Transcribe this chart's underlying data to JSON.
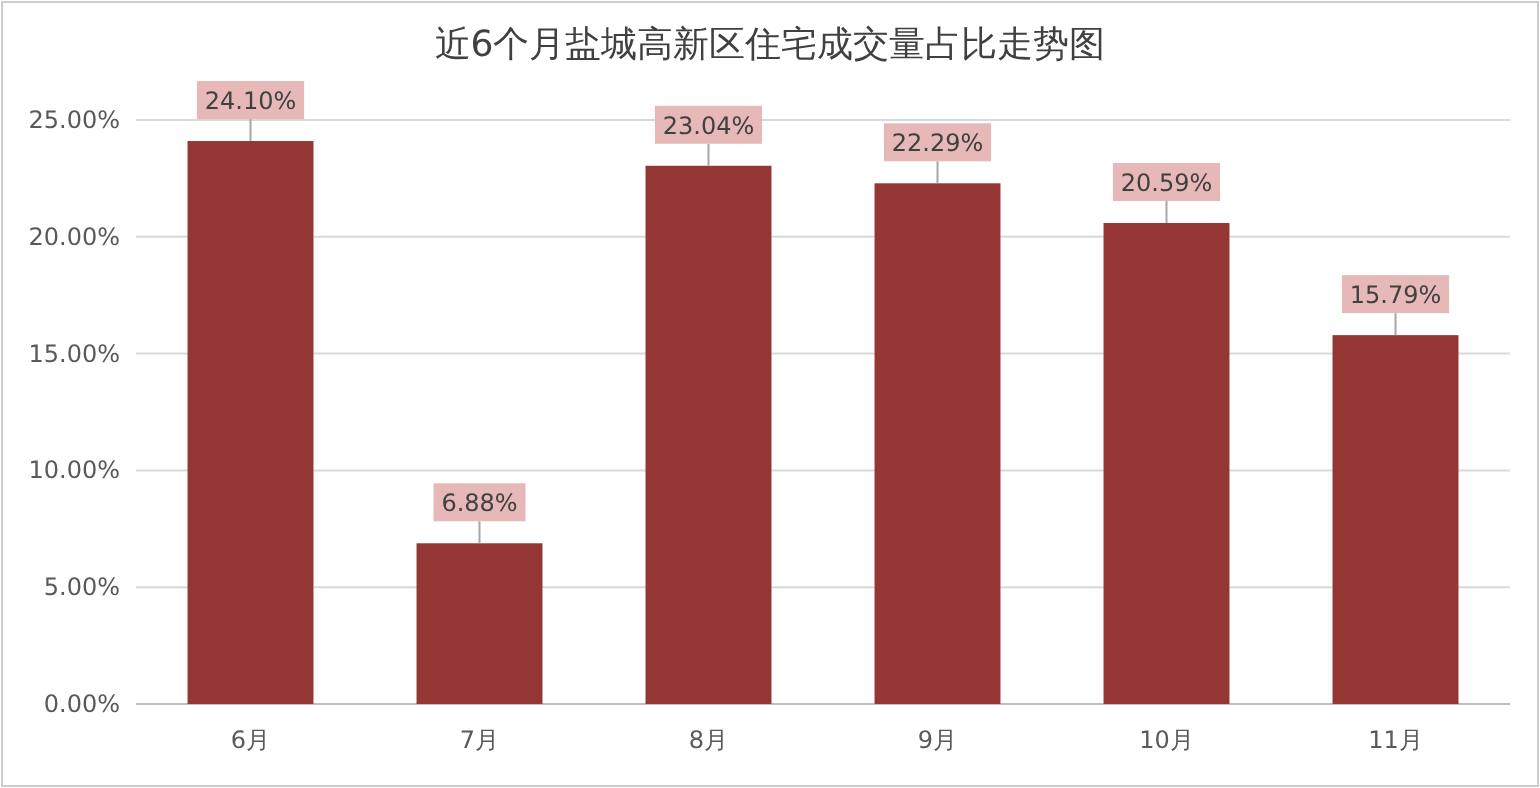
{
  "chart_data": {
    "type": "bar",
    "title": "近6个月盐城高新区住宅成交量占比走势图",
    "categories": [
      "6月",
      "7月",
      "8月",
      "9月",
      "10月",
      "11月"
    ],
    "values": [
      24.1,
      6.88,
      23.04,
      22.29,
      20.59,
      15.79
    ],
    "value_labels": [
      "24.10%",
      "6.88%",
      "23.04%",
      "22.29%",
      "20.59%",
      "15.79%"
    ],
    "color": "#943634",
    "ylim": [
      0,
      25
    ],
    "yticks": [
      {
        "value": 0,
        "label": "0.00%"
      },
      {
        "value": 5,
        "label": "5.00%"
      },
      {
        "value": 10,
        "label": "10.00%"
      },
      {
        "value": 15,
        "label": "15.00%"
      },
      {
        "value": 20,
        "label": "20.00%"
      },
      {
        "value": 25,
        "label": "25.00%"
      }
    ],
    "grid": "y"
  }
}
